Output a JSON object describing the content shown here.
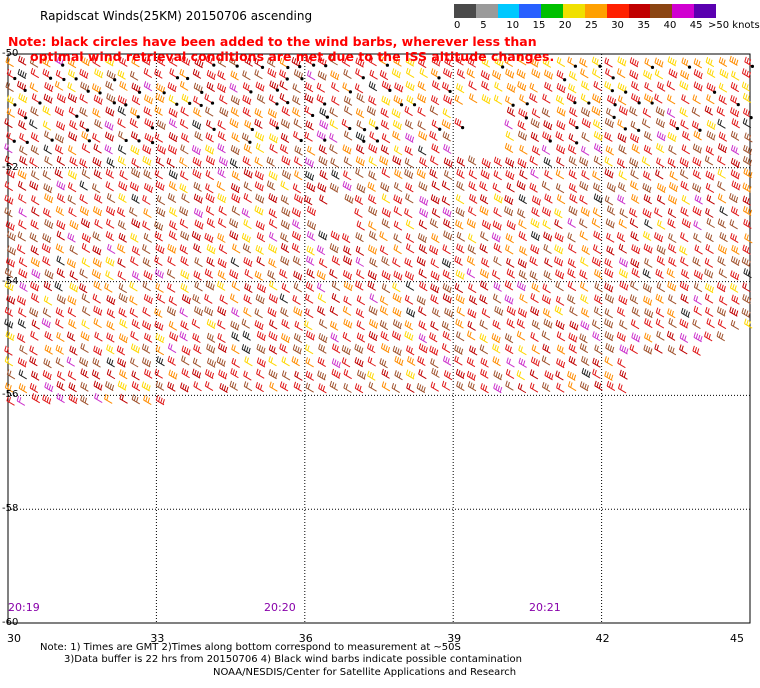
{
  "title": "Rapidscat Winds(25KM) 20150706 ascending",
  "note_line1": "Note: black circles have been added to the wind barbs, wherever less than",
  "note_line2": "optimal wind retrieval conditions are met due to the ISS altitude changes.",
  "legend": {
    "labels": [
      "0",
      "5",
      "10",
      "15",
      "20",
      "25",
      "30",
      "35",
      "40",
      "45",
      ">50 knots"
    ],
    "colors": [
      "#4a4a4a",
      "#9a9a9a",
      "#00c8ff",
      "#2860ff",
      "#00c000",
      "#f0e000",
      "#ffa000",
      "#ff2000",
      "#c00000",
      "#8b4513",
      "#d000d0",
      "#5a00b0"
    ]
  },
  "map": {
    "lon_labels": [
      "30",
      "33",
      "36",
      "39",
      "42",
      "45"
    ],
    "lat_labels": [
      "-50",
      "-52",
      "-54",
      "-56",
      "-58",
      "-60"
    ],
    "time_labels": [
      "20:19",
      "20:20",
      "20:21"
    ]
  },
  "footnote_line1": "Note: 1) Times are GMT 2)Times along bottom correspond to measurement at ~50S",
  "footnote_line2": "3)Data buffer is 22 hrs from 20150706 4) Black wind barbs indicate possible contamination",
  "credit": "NOAA/NESDIS/Center for Satellite Applications and Research"
}
